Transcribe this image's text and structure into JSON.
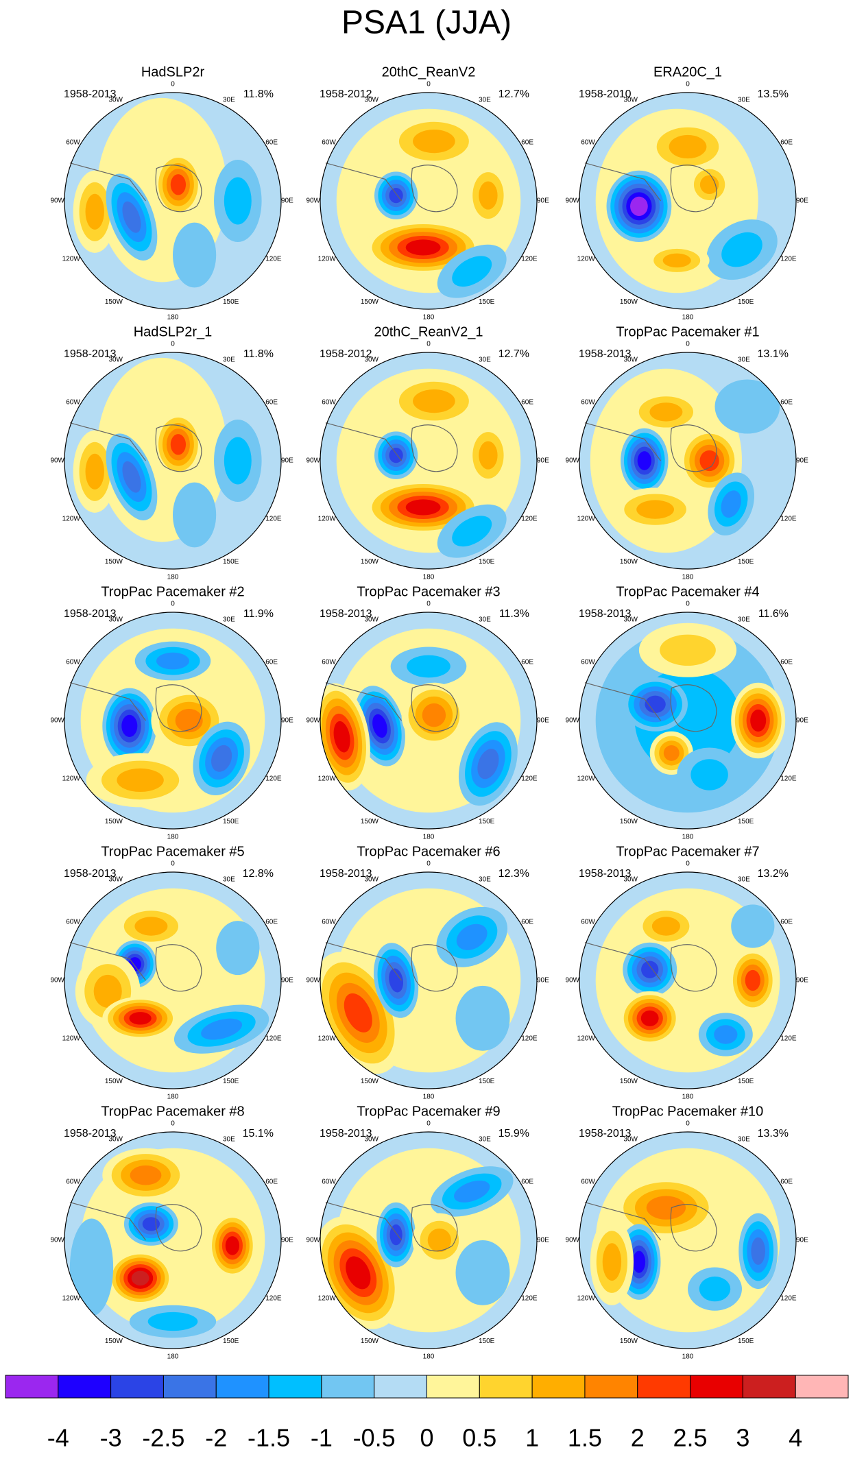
{
  "title": "PSA1 (JJA)",
  "panels": [
    {
      "title": "HadSLP2r",
      "period": "1958-2013",
      "variance": "11.8%"
    },
    {
      "title": "20thC_ReanV2",
      "period": "1958-2012",
      "variance": "12.7%"
    },
    {
      "title": "ERA20C_1",
      "period": "1958-2010",
      "variance": "13.5%"
    },
    {
      "title": "HadSLP2r_1",
      "period": "1958-2013",
      "variance": "11.8%"
    },
    {
      "title": "20thC_ReanV2_1",
      "period": "1958-2012",
      "variance": "12.7%"
    },
    {
      "title": "TropPac Pacemaker #1",
      "period": "1958-2013",
      "variance": "13.1%"
    },
    {
      "title": "TropPac Pacemaker #2",
      "period": "1958-2013",
      "variance": "11.9%"
    },
    {
      "title": "TropPac Pacemaker #3",
      "period": "1958-2013",
      "variance": "11.3%"
    },
    {
      "title": "TropPac Pacemaker #4",
      "period": "1958-2013",
      "variance": "11.6%"
    },
    {
      "title": "TropPac Pacemaker #5",
      "period": "1958-2013",
      "variance": "12.8%"
    },
    {
      "title": "TropPac Pacemaker #6",
      "period": "1958-2013",
      "variance": "12.3%"
    },
    {
      "title": "TropPac Pacemaker #7",
      "period": "1958-2013",
      "variance": "13.2%"
    },
    {
      "title": "TropPac Pacemaker #8",
      "period": "1958-2013",
      "variance": "15.1%"
    },
    {
      "title": "TropPac Pacemaker #9",
      "period": "1958-2013",
      "variance": "15.9%"
    },
    {
      "title": "TropPac Pacemaker #10",
      "period": "1958-2013",
      "variance": "13.3%"
    }
  ],
  "longitude_labels": [
    "0",
    "30E",
    "60E",
    "90E",
    "120E",
    "150E",
    "180",
    "150W",
    "120W",
    "90W",
    "60W",
    "30W"
  ],
  "colorbar": {
    "colors": [
      "#9b27ef",
      "#1e00ff",
      "#2b44e6",
      "#3a74e6",
      "#1f92ff",
      "#00bfff",
      "#72c6f2",
      "#b4dcf4",
      "#fff59a",
      "#ffd42e",
      "#ffae00",
      "#ff8400",
      "#ff3a00",
      "#e80000",
      "#cc1f1f",
      "#ffb6b6"
    ],
    "labels": [
      -4,
      -3,
      -2.5,
      -2,
      -1.5,
      -1,
      -0.5,
      0,
      0.5,
      1,
      1.5,
      2,
      2.5,
      3,
      4
    ]
  }
}
